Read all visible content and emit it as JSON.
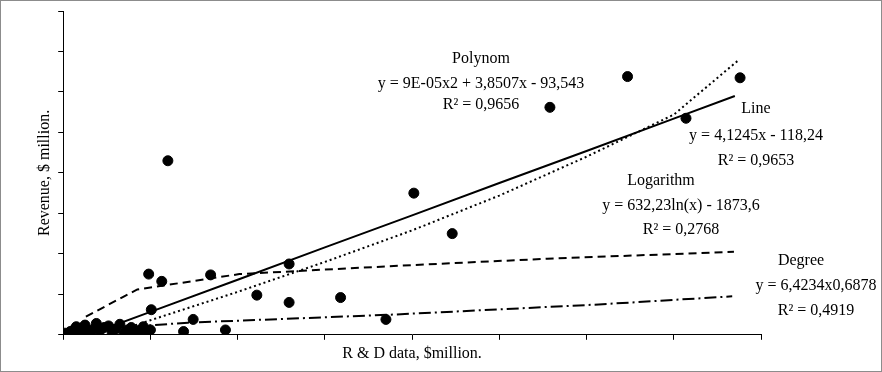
{
  "chart_data": {
    "type": "scatter",
    "x_label": "R & D data, $million.",
    "y_label": "Revenue, $ million.",
    "xlim": [
      0,
      800
    ],
    "xticks": [
      0,
      100,
      200,
      300,
      400,
      500,
      600,
      700,
      800
    ],
    "ylim": [
      0,
      4000
    ],
    "yticks": [
      0,
      500,
      1000,
      1500,
      2000,
      2500,
      3000,
      3500,
      4000
    ],
    "tick_labels": false,
    "grid": false,
    "color": "#000000",
    "marker": "circle",
    "x": [
      776,
      647,
      558,
      714,
      120,
      402,
      446,
      259,
      98,
      169,
      113,
      222,
      318,
      259,
      101,
      370,
      149,
      186,
      138,
      100,
      97,
      2,
      8,
      12,
      15,
      20,
      25,
      28,
      33,
      38,
      42,
      47,
      52,
      56,
      60,
      65,
      70,
      74,
      78,
      82,
      88,
      92,
      5,
      18
    ],
    "values": [
      3175,
      3190,
      2810,
      2675,
      2150,
      1750,
      1250,
      875,
      750,
      740,
      660,
      490,
      460,
      400,
      310,
      190,
      190,
      60,
      40,
      60,
      40,
      20,
      40,
      60,
      100,
      80,
      120,
      30,
      60,
      140,
      50,
      90,
      110,
      40,
      70,
      130,
      20,
      60,
      90,
      30,
      50,
      100,
      5,
      10
    ],
    "series": [
      {
        "name": "Polynom",
        "type": "line",
        "color": "#000000",
        "line_style": "dotted",
        "equation": "y = 9E-05x2 + 3,8507x - 93,543",
        "r2": "R² = 0,9656",
        "x": [
          50,
          100,
          200,
          300,
          400,
          500,
          600,
          700,
          775
        ],
        "values": [
          0,
          180,
          530,
          900,
          1290,
          1720,
          2200,
          2720,
          3400
        ]
      },
      {
        "name": "Line",
        "type": "line",
        "color": "#000000",
        "line_style": "solid",
        "equation": "y = 4,1245x - 118,24",
        "r2": "R² = 0,9653",
        "x": [
          29,
          100,
          200,
          300,
          400,
          500,
          600,
          700,
          770
        ],
        "values": [
          0,
          283,
          680,
          1080,
          1475,
          1875,
          2270,
          2670,
          2950
        ]
      },
      {
        "name": "Logarithm",
        "type": "line",
        "color": "#000000",
        "line_style": "dashed",
        "equation": "y = 632,23ln(x) - 1873,6",
        "r2": "R² = 0,2768",
        "x": [
          26,
          85,
          202,
          379,
          555,
          769
        ],
        "values": [
          225,
          560,
          750,
          850,
          940,
          1025
        ]
      },
      {
        "name": "Degree",
        "type": "line",
        "color": "#000000",
        "line_style": "dashdot",
        "equation": "y = 6,4234x0,6878",
        "r2": "R² = 0,4919",
        "x": [
          5,
          26,
          143,
          379,
          614,
          767
        ],
        "values": [
          20,
          60,
          150,
          250,
          375,
          475
        ]
      }
    ]
  }
}
